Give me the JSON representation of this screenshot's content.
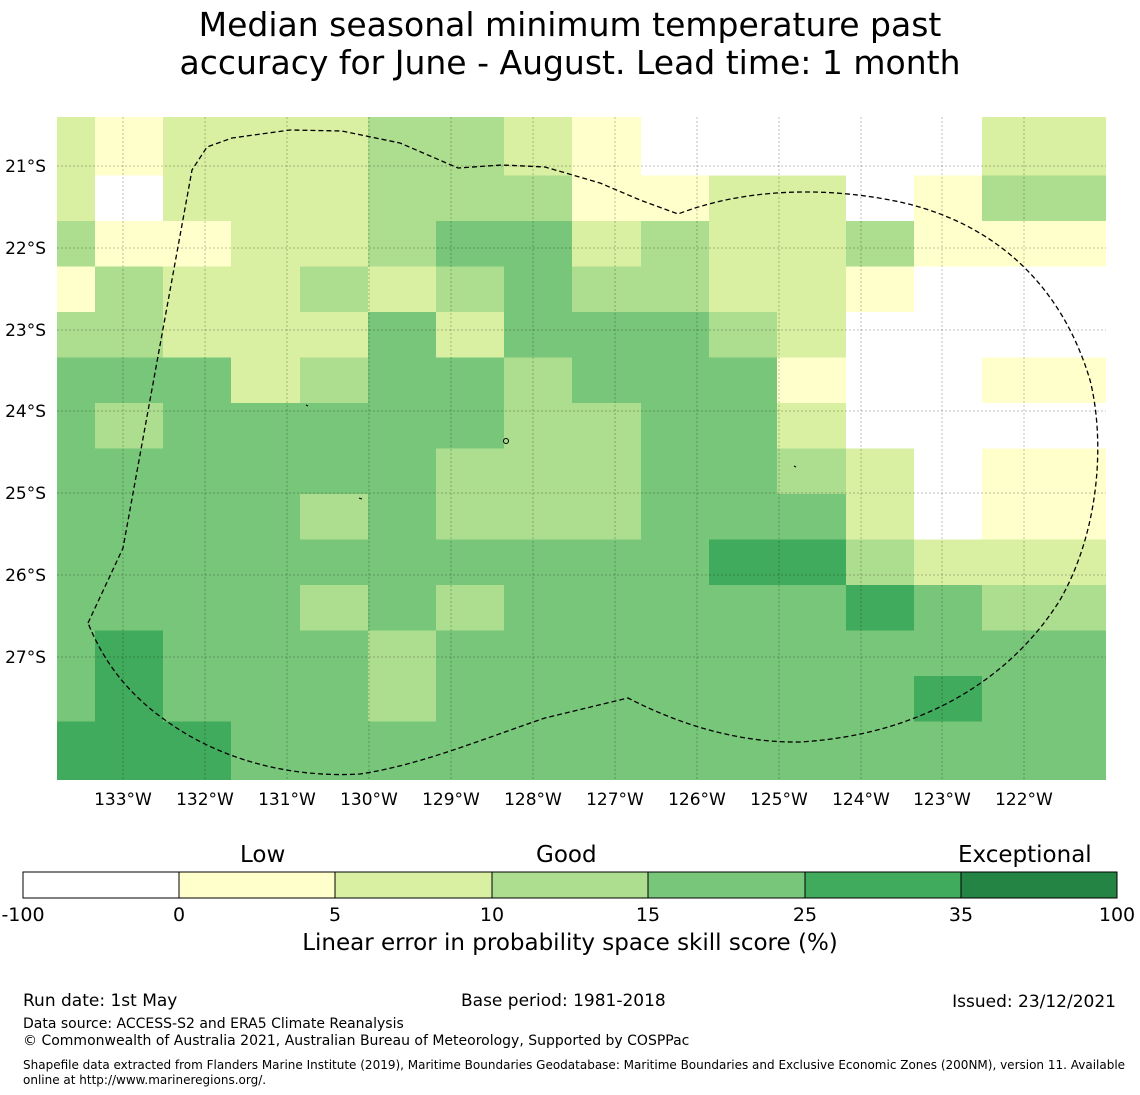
{
  "title": {
    "line1": "Median seasonal minimum temperature past",
    "line2": "accuracy for June - August. Lead time: 1 month"
  },
  "map": {
    "lat_labels": [
      "21°S",
      "22°S",
      "23°S",
      "24°S",
      "25°S",
      "26°S",
      "27°S"
    ],
    "lon_labels": [
      "133°W",
      "132°W",
      "131°W",
      "130°W",
      "129°W",
      "128°W",
      "127°W",
      "126°W",
      "125°W",
      "124°W",
      "123°W",
      "122°W"
    ],
    "colors": {
      "c0": "#ffffff",
      "c1": "#ffffcc",
      "c2": "#d9f0a3",
      "c3": "#addd8e",
      "c4": "#78c679",
      "c5": "#41ab5d",
      "c6": "#238443"
    },
    "grid": [
      [
        2,
        1,
        2,
        2,
        2,
        3,
        3,
        2,
        1,
        0,
        0,
        0,
        0,
        0,
        2
      ],
      [
        2,
        0,
        2,
        2,
        2,
        3,
        3,
        3,
        1,
        1,
        2,
        2,
        0,
        1,
        3
      ],
      [
        3,
        1,
        1,
        2,
        2,
        3,
        4,
        4,
        2,
        3,
        2,
        2,
        3,
        1,
        1
      ],
      [
        1,
        3,
        2,
        2,
        3,
        2,
        3,
        4,
        3,
        3,
        2,
        2,
        1,
        0,
        0
      ],
      [
        3,
        3,
        2,
        2,
        2,
        4,
        2,
        4,
        4,
        4,
        3,
        2,
        0,
        0,
        0
      ],
      [
        4,
        4,
        4,
        2,
        3,
        4,
        4,
        3,
        4,
        4,
        4,
        1,
        0,
        0,
        1
      ],
      [
        4,
        3,
        4,
        4,
        4,
        4,
        4,
        3,
        3,
        4,
        4,
        2,
        0,
        0,
        0
      ],
      [
        4,
        4,
        4,
        4,
        4,
        4,
        3,
        3,
        3,
        4,
        4,
        3,
        2,
        0,
        1
      ],
      [
        4,
        4,
        4,
        4,
        3,
        4,
        3,
        3,
        3,
        4,
        4,
        4,
        2,
        0,
        1
      ],
      [
        4,
        4,
        4,
        4,
        4,
        4,
        4,
        4,
        4,
        4,
        5,
        5,
        3,
        2,
        2
      ],
      [
        4,
        4,
        4,
        4,
        3,
        4,
        3,
        4,
        4,
        4,
        4,
        4,
        5,
        4,
        3
      ],
      [
        4,
        5,
        4,
        4,
        4,
        3,
        4,
        4,
        4,
        4,
        4,
        4,
        4,
        4,
        4
      ],
      [
        4,
        5,
        4,
        4,
        4,
        3,
        4,
        4,
        4,
        4,
        4,
        4,
        4,
        5,
        4
      ],
      [
        5,
        5,
        5,
        4,
        4,
        4,
        4,
        4,
        4,
        4,
        4,
        4,
        4,
        4,
        4
      ]
    ]
  },
  "colorbar": {
    "labels_top": [
      "Low",
      "Good",
      "Exceptional"
    ],
    "ticks": [
      "-100",
      "0",
      "5",
      "10",
      "15",
      "25",
      "35",
      "100"
    ],
    "title": "Linear error in probability space skill score (%)"
  },
  "footer": {
    "run_date": "Run date: 1st May",
    "base_period": "Base period: 1981-2018",
    "issued": "Issued: 23/12/2021",
    "data_source": "Data source: ACCESS-S2 and ERA5 Climate Reanalysis",
    "copyright": "© Commonwealth of Australia 2021, Australian Bureau of Meteorology, Supported by COSPPac",
    "shapefile_line1": "Shapefile data extracted from Flanders Marine Institute (2019), Maritime Boundaries Geodatabase: Maritime Boundaries and Exclusive Economic Zones (200NM), version 11. Available",
    "shapefile_line2": "online at http://www.marineregions.org/."
  }
}
